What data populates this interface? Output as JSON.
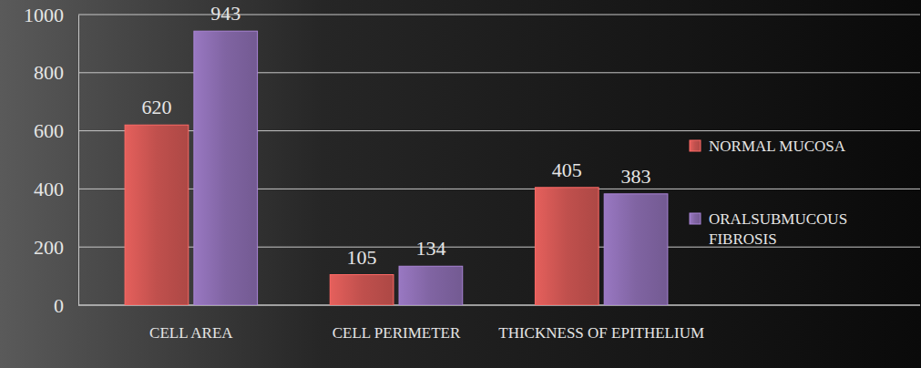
{
  "chart_data": {
    "type": "bar",
    "categories": [
      "CELL AREA",
      "CELL PERIMETER",
      "THICKNESS OF EPITHELIUM"
    ],
    "series": [
      {
        "name": "NORMAL MUCOSA",
        "color": "#c0504d",
        "values": [
          620,
          105,
          405
        ]
      },
      {
        "name": "ORALSUBMUCOUS FIBROSIS",
        "color": "#8064a2",
        "values": [
          943,
          134,
          383
        ]
      }
    ],
    "ylim": [
      0,
      1000
    ],
    "yticks": [
      0,
      200,
      400,
      600,
      800,
      1000
    ],
    "grid": true,
    "legend": "right",
    "data_labels": true
  }
}
